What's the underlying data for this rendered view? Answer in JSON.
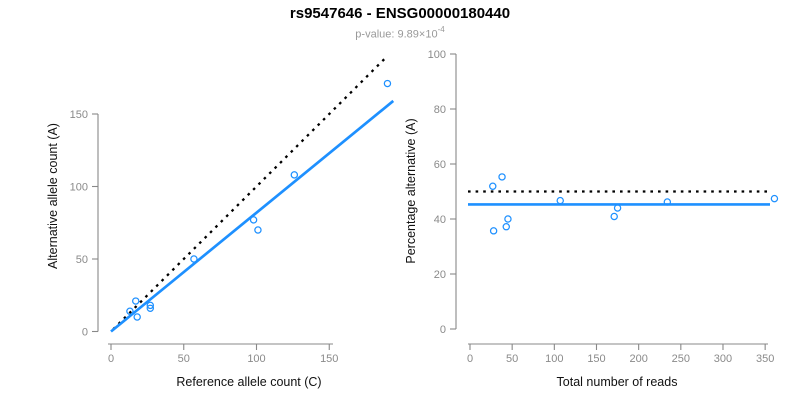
{
  "title": "rs9547646 - ENSG00000180440",
  "subtitle": {
    "prefix": "p-value: 9.89×10",
    "exponent": "-4"
  },
  "colors": {
    "accent_blue": "#1E90FF",
    "dotted_black": "#000000",
    "axis_gray": "#888888",
    "tick_label_gray": "#8a8a8a",
    "subtitle_gray": "#999999",
    "title_black": "#000000"
  },
  "chart_data": [
    {
      "type": "scatter",
      "panel": "left",
      "xlabel": "Reference allele count (C)",
      "ylabel": "Alternative allele count (A)",
      "xticks": [
        0,
        50,
        100,
        150
      ],
      "yticks": [
        0,
        50,
        100,
        150
      ],
      "xlim": [
        -8,
        200
      ],
      "ylim": [
        -9,
        190
      ],
      "grid": false,
      "legend": false,
      "points": [
        [
          190,
          171
        ],
        [
          126,
          108
        ],
        [
          98,
          77
        ],
        [
          101,
          70
        ],
        [
          57,
          50
        ],
        [
          17,
          21
        ],
        [
          13,
          14
        ],
        [
          27,
          18
        ],
        [
          27,
          16
        ],
        [
          18,
          10
        ]
      ],
      "lines": [
        {
          "name": "identity-line",
          "style": "dotted",
          "color": "#000000",
          "from": [
            1.5,
            1.5
          ],
          "to": [
            189,
            189
          ]
        },
        {
          "name": "fit-line",
          "style": "solid",
          "color": "#1E90FF",
          "from": [
            0,
            0
          ],
          "to": [
            194,
            159
          ]
        }
      ]
    },
    {
      "type": "scatter",
      "panel": "right",
      "xlabel": "Total number of reads",
      "ylabel": "Percentage alternative (A)",
      "xticks": [
        0,
        50,
        100,
        150,
        200,
        250,
        300,
        350
      ],
      "yticks": [
        0,
        20,
        40,
        60,
        80,
        100
      ],
      "xlim": [
        -17,
        353
      ],
      "ylim": [
        -5,
        100
      ],
      "grid": false,
      "legend": false,
      "points": [
        [
          361,
          47.4
        ],
        [
          234,
          46.2
        ],
        [
          175,
          44.0
        ],
        [
          171,
          40.9
        ],
        [
          107,
          46.7
        ],
        [
          38,
          55.3
        ],
        [
          27,
          51.9
        ],
        [
          45,
          40.0
        ],
        [
          43,
          37.2
        ],
        [
          28,
          35.7
        ]
      ],
      "lines": [
        {
          "name": "fifty-percent-line",
          "style": "dotted",
          "color": "#000000",
          "y": 50
        },
        {
          "name": "mean-percentage-line",
          "style": "solid",
          "color": "#1E90FF",
          "y": 45.3
        }
      ]
    }
  ]
}
